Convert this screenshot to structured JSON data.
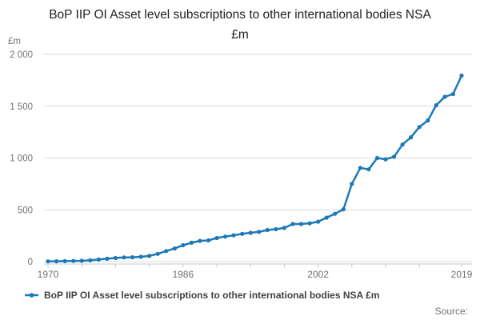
{
  "header": {
    "title": "BoP IIP OI Asset level subscriptions to other international bodies NSA £m"
  },
  "legend": {
    "label": "BoP IIP OI Asset level subscriptions to other international bodies NSA £m"
  },
  "footer": {
    "source_label": "Source:"
  },
  "chart_data": {
    "type": "line",
    "title": "BoP IIP OI Asset level subscriptions to other international bodies NSA £m",
    "xlabel": "",
    "ylabel": "£m",
    "xlim": [
      1970,
      2019
    ],
    "ylim": [
      0,
      2000
    ],
    "grid": "horizontal",
    "legend_position": "bottom-left",
    "y_ticks": [
      0,
      500,
      1000,
      1500,
      2000
    ],
    "y_tick_labels": [
      "0",
      "500",
      "1 000",
      "1 500",
      "2 000"
    ],
    "x_ticks_minor": [
      1970,
      1974,
      1978,
      1982,
      1986,
      1990,
      1994,
      1998,
      2002,
      2006,
      2010,
      2014,
      2019
    ],
    "x_ticks_labeled": [
      1970,
      1986,
      2002,
      2019
    ],
    "series": [
      {
        "name": "BoP IIP OI Asset level subscriptions to other international bodies NSA £m",
        "color": "#1c79b6",
        "marker": "circle",
        "x": [
          1970,
          1971,
          1972,
          1973,
          1974,
          1975,
          1976,
          1977,
          1978,
          1979,
          1980,
          1981,
          1982,
          1983,
          1984,
          1985,
          1986,
          1987,
          1988,
          1989,
          1990,
          1991,
          1992,
          1993,
          1994,
          1995,
          1996,
          1997,
          1998,
          1999,
          2000,
          2001,
          2002,
          2003,
          2004,
          2005,
          2006,
          2007,
          2008,
          2009,
          2010,
          2011,
          2012,
          2013,
          2014,
          2015,
          2016,
          2017,
          2018,
          2019
        ],
        "values": [
          2,
          3,
          5,
          6,
          8,
          12,
          20,
          28,
          35,
          40,
          42,
          46,
          55,
          75,
          102,
          127,
          158,
          182,
          200,
          205,
          228,
          242,
          254,
          268,
          278,
          287,
          305,
          313,
          325,
          363,
          363,
          370,
          385,
          425,
          462,
          505,
          750,
          905,
          890,
          1000,
          988,
          1012,
          1130,
          1200,
          1300,
          1362,
          1510,
          1590,
          1618,
          1795
        ]
      }
    ]
  }
}
